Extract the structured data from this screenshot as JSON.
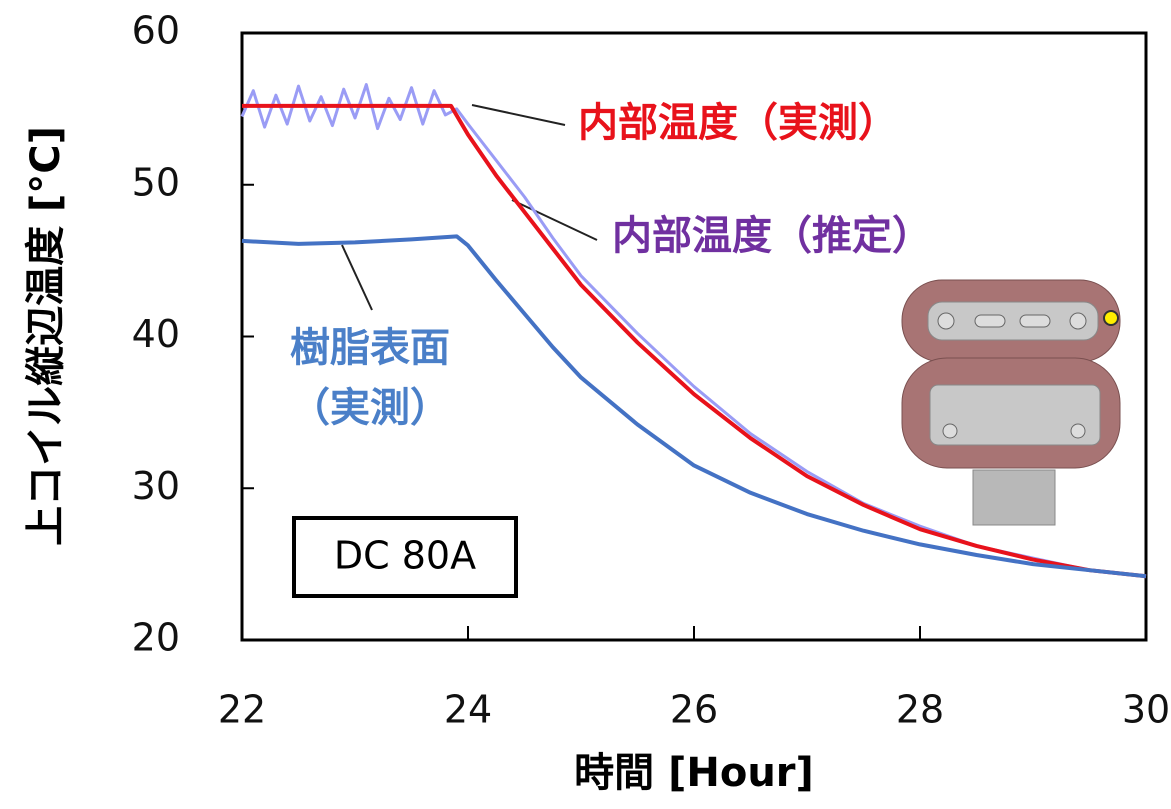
{
  "chart_data": {
    "type": "line",
    "x_label": "時間 [Hour]",
    "y_label": "上コイル縦辺温度 [°C]",
    "xlim": [
      22,
      30
    ],
    "xticks": [
      22,
      24,
      26,
      28,
      30
    ],
    "ylim": [
      20,
      60
    ],
    "yticks": [
      20,
      30,
      40,
      50,
      60
    ],
    "series": [
      {
        "name": "内部温度（推定）",
        "color": "#9a9cf5",
        "x": [
          22,
          22.1,
          22.2,
          22.3,
          22.4,
          22.5,
          22.6,
          22.7,
          22.8,
          22.9,
          23,
          23.1,
          23.2,
          23.3,
          23.4,
          23.5,
          23.6,
          23.7,
          23.8,
          23.9,
          24,
          24.25,
          24.5,
          24.75,
          25,
          25.5,
          26,
          26.5,
          27,
          27.5,
          28,
          28.5,
          29,
          29.5,
          30
        ],
        "values": [
          54.5,
          56.2,
          53.8,
          55.9,
          54.0,
          56.5,
          54.2,
          55.8,
          53.9,
          56.3,
          54.4,
          56.6,
          53.7,
          55.7,
          54.3,
          56.4,
          54.0,
          56.2,
          54.6,
          55.0,
          54.0,
          51.6,
          49.2,
          46.5,
          44.0,
          40.2,
          36.7,
          33.6,
          31.1,
          29.0,
          27.5,
          26.2,
          25.4,
          24.6,
          24.2
        ]
      },
      {
        "name": "内部温度（実測）",
        "color": "#e8121b",
        "x": [
          22,
          22.5,
          23,
          23.5,
          23.85,
          24,
          24.25,
          24.5,
          24.75,
          25,
          25.5,
          26,
          26.5,
          27,
          27.5,
          28,
          28.5,
          29,
          29.5,
          30
        ],
        "values": [
          55.2,
          55.2,
          55.2,
          55.2,
          55.2,
          53.3,
          50.6,
          48.2,
          45.8,
          43.4,
          39.6,
          36.2,
          33.3,
          30.8,
          28.9,
          27.3,
          26.2,
          25.3,
          24.6,
          24.2
        ]
      },
      {
        "name": "樹脂表面（実測）",
        "color": "#4472c4",
        "x": [
          22,
          22.5,
          23,
          23.5,
          23.9,
          24,
          24.25,
          24.5,
          24.75,
          25,
          25.5,
          26,
          26.5,
          27,
          27.5,
          28,
          28.5,
          29,
          29.5,
          30
        ],
        "values": [
          46.3,
          46.1,
          46.2,
          46.4,
          46.6,
          46.0,
          43.7,
          41.5,
          39.3,
          37.3,
          34.2,
          31.5,
          29.7,
          28.3,
          27.2,
          26.3,
          25.6,
          25.0,
          24.6,
          24.2
        ]
      }
    ],
    "annotations": [
      {
        "text": "内部温度（実測）",
        "color": "#e8121b"
      },
      {
        "text": "内部温度（推定）",
        "color": "#7030a0"
      },
      {
        "text": "樹脂表面",
        "color": "#4a7fc8"
      },
      {
        "text": "（実測）",
        "color": "#4a7fc8"
      },
      {
        "text": "DC 80A",
        "color": "#000000"
      }
    ]
  }
}
